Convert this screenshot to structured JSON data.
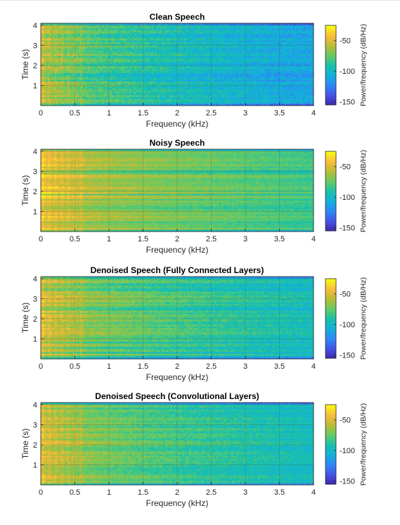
{
  "figure": {
    "background": "#ffffff"
  },
  "chart_data": [
    {
      "type": "heatmap",
      "title": "Clean Speech",
      "xlabel": "Frequency (kHz)",
      "ylabel": "Time (s)",
      "xlim": [
        0,
        4
      ],
      "ylim": [
        0,
        4.1
      ],
      "xticks": [
        "0",
        "0.5",
        "1",
        "1.5",
        "2",
        "2.5",
        "3",
        "3.5",
        "4"
      ],
      "xtick_values": [
        0,
        0.5,
        1,
        1.5,
        2,
        2.5,
        3,
        3.5,
        4
      ],
      "yticks": [
        "1",
        "2",
        "3",
        "4"
      ],
      "ytick_values": [
        1,
        2,
        3,
        4
      ],
      "grid": true,
      "colorbar": {
        "label": "Power/frequency (dB/Hz)",
        "ticks": [
          "-50",
          "-100",
          "-150"
        ],
        "tick_values": [
          -50,
          -100,
          -150
        ],
        "range": [
          -155,
          -25
        ],
        "colormap": "parula"
      },
      "energy_profile": {
        "low_freq_level_db": -55,
        "high_freq_level_db": -110,
        "noise_floor": "low"
      }
    },
    {
      "type": "heatmap",
      "title": "Noisy Speech",
      "xlabel": "Frequency (kHz)",
      "ylabel": "Time (s)",
      "xlim": [
        0,
        4
      ],
      "ylim": [
        0,
        4.1
      ],
      "xticks": [
        "0",
        "0.5",
        "1",
        "1.5",
        "2",
        "2.5",
        "3",
        "3.5",
        "4"
      ],
      "xtick_values": [
        0,
        0.5,
        1,
        1.5,
        2,
        2.5,
        3,
        3.5,
        4
      ],
      "yticks": [
        "1",
        "2",
        "3",
        "4"
      ],
      "ytick_values": [
        1,
        2,
        3,
        4
      ],
      "grid": true,
      "colorbar": {
        "label": "Power/frequency (dB/Hz)",
        "ticks": [
          "-50",
          "-100",
          "-150"
        ],
        "tick_values": [
          -50,
          -100,
          -150
        ],
        "range": [
          -155,
          -25
        ],
        "colormap": "parula"
      },
      "energy_profile": {
        "low_freq_level_db": -40,
        "high_freq_level_db": -80,
        "noise_floor": "high"
      }
    },
    {
      "type": "heatmap",
      "title": "Denoised Speech (Fully Connected Layers)",
      "xlabel": "Frequency (kHz)",
      "ylabel": "Time (s)",
      "xlim": [
        0,
        4
      ],
      "ylim": [
        0,
        4.1
      ],
      "xticks": [
        "0",
        "0.5",
        "1",
        "1.5",
        "2",
        "2.5",
        "3",
        "3.5",
        "4"
      ],
      "xtick_values": [
        0,
        0.5,
        1,
        1.5,
        2,
        2.5,
        3,
        3.5,
        4
      ],
      "yticks": [
        "1",
        "2",
        "3",
        "4"
      ],
      "ytick_values": [
        1,
        2,
        3,
        4
      ],
      "grid": true,
      "colorbar": {
        "label": "Power/frequency (dB/Hz)",
        "ticks": [
          "-50",
          "-100",
          "-150"
        ],
        "tick_values": [
          -50,
          -100,
          -150
        ],
        "range": [
          -155,
          -25
        ],
        "colormap": "parula"
      },
      "energy_profile": {
        "low_freq_level_db": -50,
        "high_freq_level_db": -95,
        "noise_floor": "medium"
      }
    },
    {
      "type": "heatmap",
      "title": "Denoised Speech (Convolutional Layers)",
      "xlabel": "Frequency (kHz)",
      "ylabel": "Time (s)",
      "xlim": [
        0,
        4
      ],
      "ylim": [
        0,
        4.1
      ],
      "xticks": [
        "0",
        "0.5",
        "1",
        "1.5",
        "2",
        "2.5",
        "3",
        "3.5",
        "4"
      ],
      "xtick_values": [
        0,
        0.5,
        1,
        1.5,
        2,
        2.5,
        3,
        3.5,
        4
      ],
      "yticks": [
        "1",
        "2",
        "3",
        "4"
      ],
      "ytick_values": [
        1,
        2,
        3,
        4
      ],
      "grid": true,
      "colorbar": {
        "label": "Power/frequency (dB/Hz)",
        "ticks": [
          "-50",
          "-100",
          "-150"
        ],
        "tick_values": [
          -50,
          -100,
          -150
        ],
        "range": [
          -155,
          -25
        ],
        "colormap": "parula"
      },
      "energy_profile": {
        "low_freq_level_db": -48,
        "high_freq_level_db": -95,
        "noise_floor": "medium"
      }
    }
  ]
}
